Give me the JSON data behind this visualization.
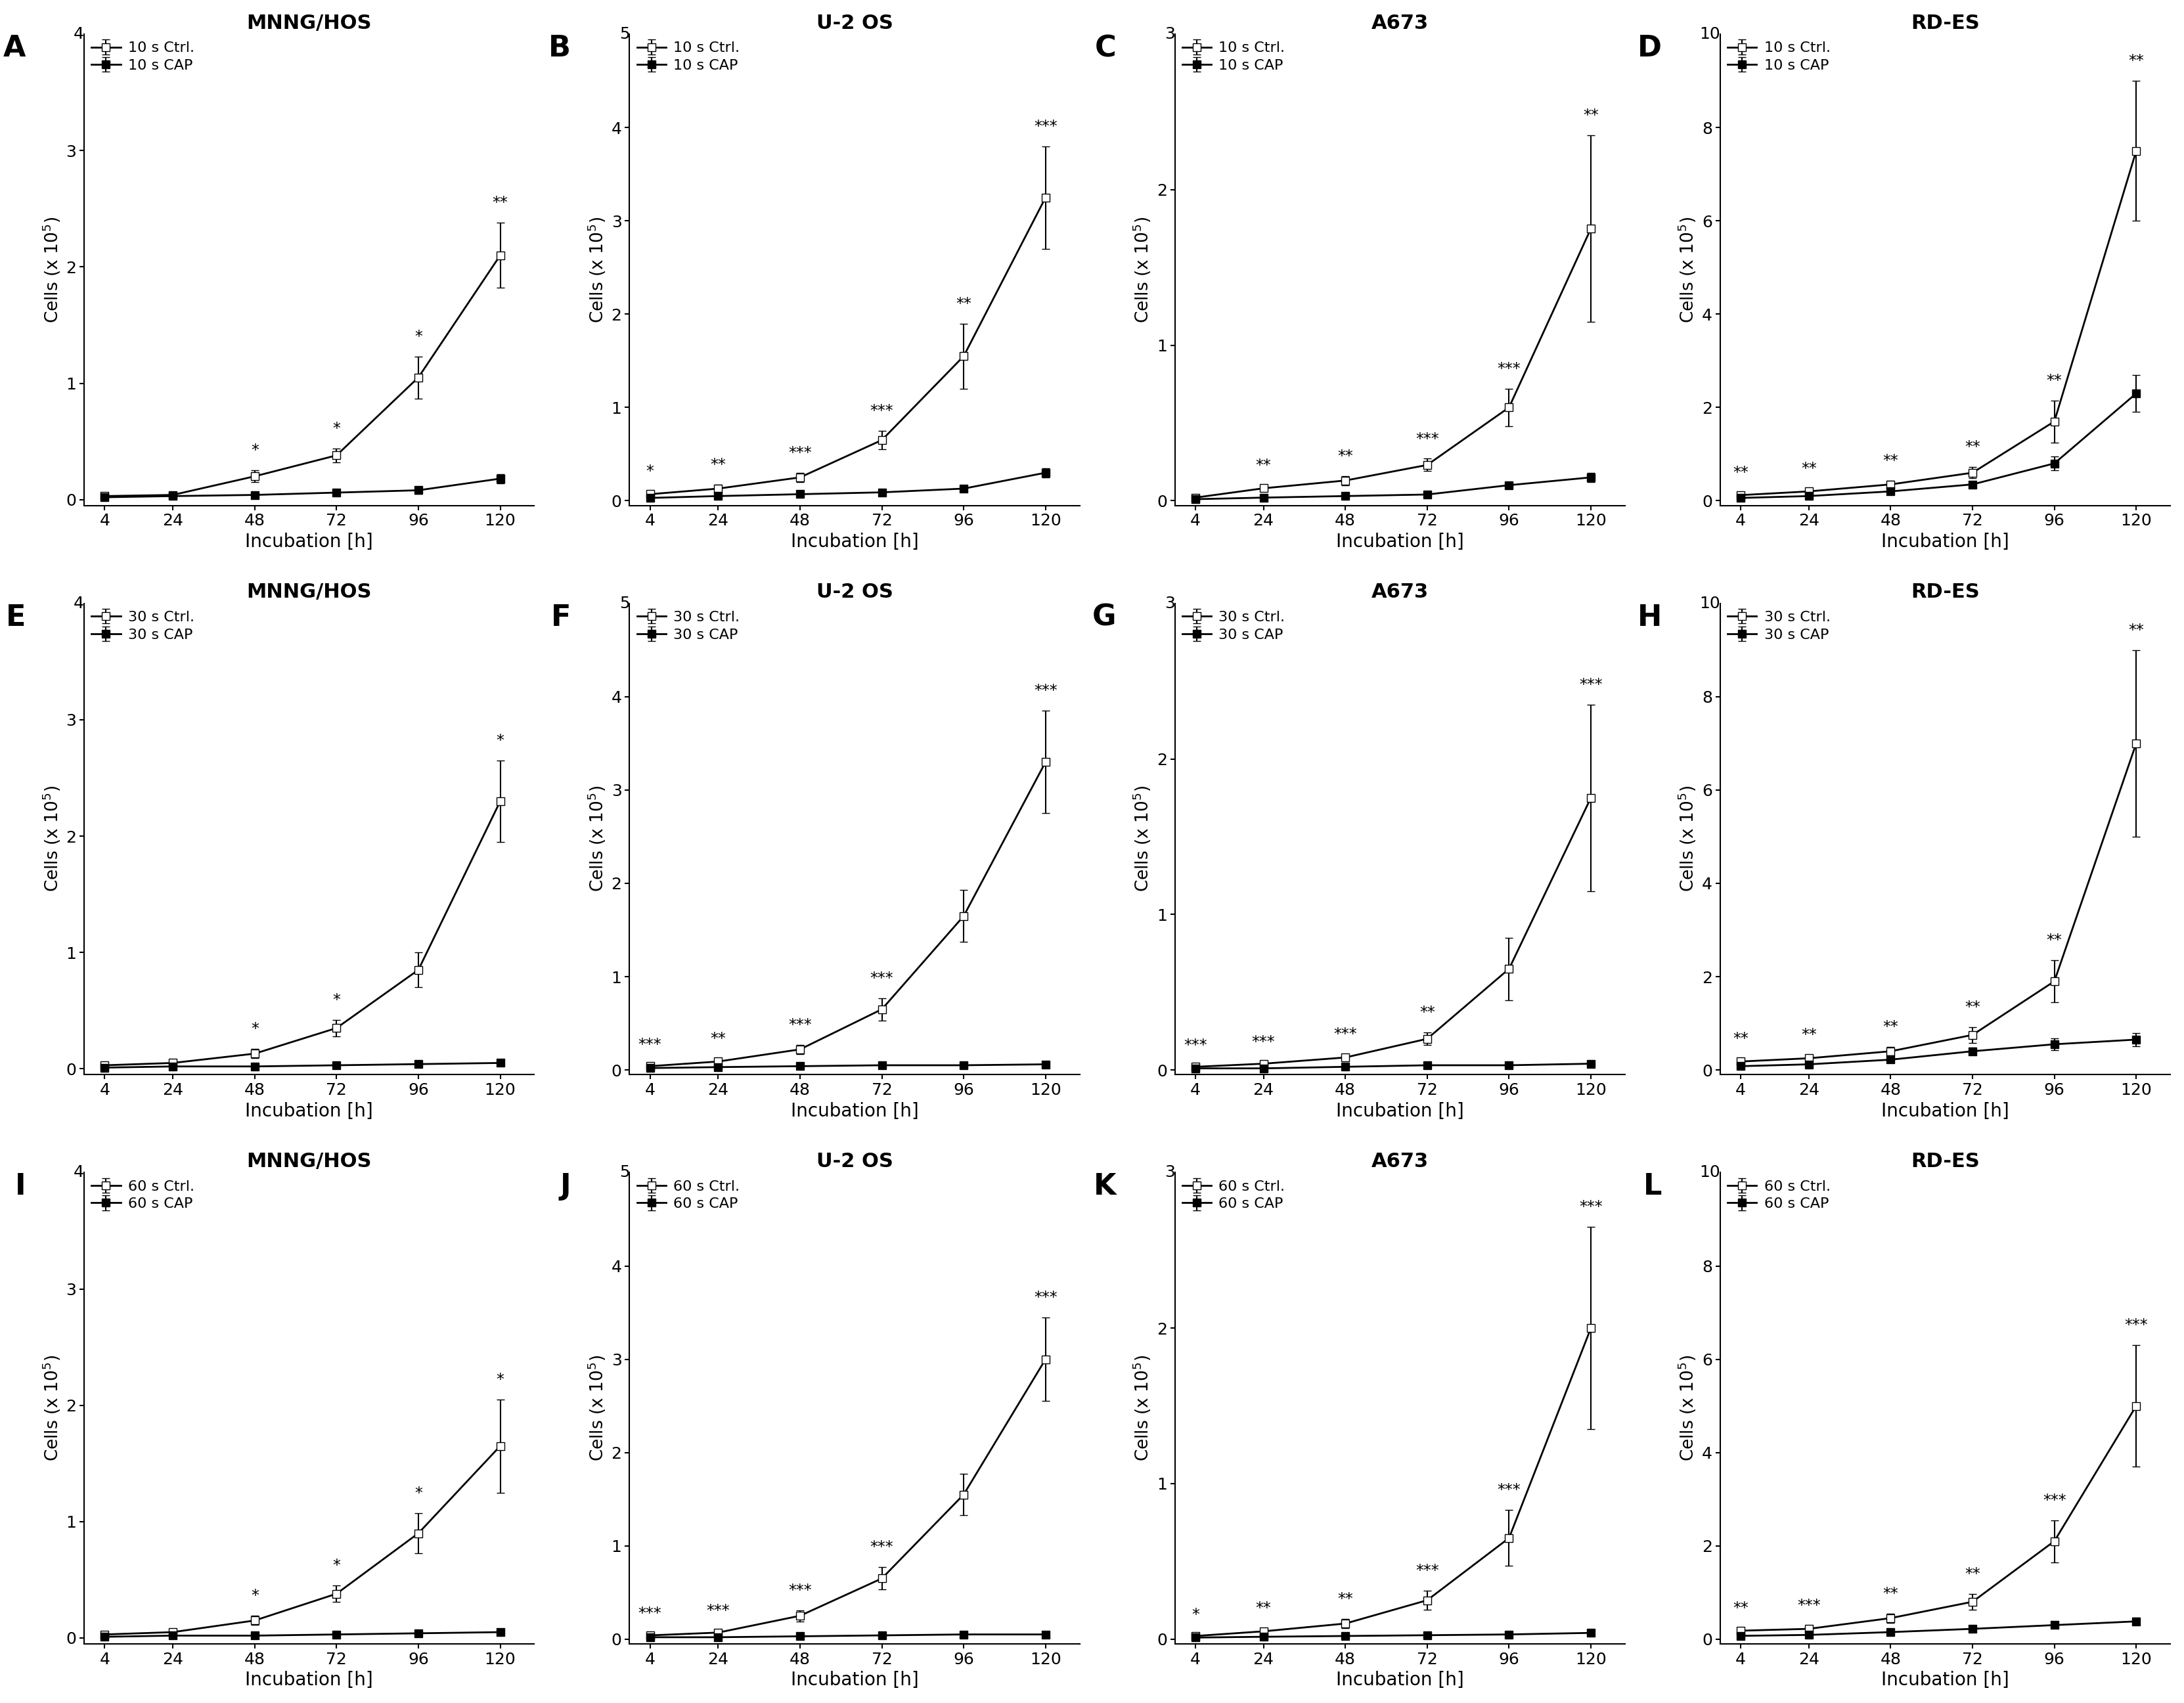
{
  "x": [
    4,
    24,
    48,
    72,
    96,
    120
  ],
  "panels": [
    {
      "label": "A",
      "title": "MNNG/HOS",
      "row": 0,
      "col": 0,
      "ctrl_label": "10 s Ctrl.",
      "cap_label": "10 s CAP",
      "ylim": [
        -0.05,
        4
      ],
      "yticks": [
        0,
        1,
        2,
        3
      ],
      "ymax_label": "4",
      "ctrl_y": [
        0.03,
        0.04,
        0.2,
        0.38,
        1.05,
        2.1
      ],
      "ctrl_err": [
        0.02,
        0.02,
        0.05,
        0.06,
        0.18,
        0.28
      ],
      "cap_y": [
        0.02,
        0.03,
        0.04,
        0.06,
        0.08,
        0.18
      ],
      "cap_err": [
        0.01,
        0.01,
        0.02,
        0.02,
        0.03,
        0.04
      ],
      "sig": [
        "",
        "",
        "*",
        "*",
        "*",
        "**"
      ]
    },
    {
      "label": "B",
      "title": "U-2 OS",
      "row": 0,
      "col": 1,
      "ctrl_label": "10 s Ctrl.",
      "cap_label": "10 s CAP",
      "ylim": [
        -0.05,
        5
      ],
      "yticks": [
        0,
        1,
        2,
        3,
        4
      ],
      "ymax_label": "5",
      "ctrl_y": [
        0.07,
        0.13,
        0.25,
        0.65,
        1.55,
        3.25
      ],
      "ctrl_err": [
        0.03,
        0.04,
        0.05,
        0.1,
        0.35,
        0.55
      ],
      "cap_y": [
        0.03,
        0.05,
        0.07,
        0.09,
        0.13,
        0.3
      ],
      "cap_err": [
        0.01,
        0.01,
        0.02,
        0.02,
        0.03,
        0.05
      ],
      "sig": [
        "*",
        "**",
        "***",
        "***",
        "**",
        "***"
      ]
    },
    {
      "label": "C",
      "title": "A673",
      "row": 0,
      "col": 2,
      "ctrl_label": "10 s Ctrl.",
      "cap_label": "10 s CAP",
      "ylim": [
        -0.03,
        3
      ],
      "yticks": [
        0,
        1,
        2
      ],
      "ymax_label": "3",
      "ctrl_y": [
        0.02,
        0.08,
        0.13,
        0.23,
        0.6,
        1.75
      ],
      "ctrl_err": [
        0.01,
        0.02,
        0.03,
        0.04,
        0.12,
        0.6
      ],
      "cap_y": [
        0.01,
        0.02,
        0.03,
        0.04,
        0.1,
        0.15
      ],
      "cap_err": [
        0.005,
        0.005,
        0.01,
        0.01,
        0.02,
        0.03
      ],
      "sig": [
        "",
        "**",
        "**",
        "***",
        "***",
        "**"
      ]
    },
    {
      "label": "D",
      "title": "RD-ES",
      "row": 0,
      "col": 3,
      "ctrl_label": "10 s Ctrl.",
      "cap_label": "10 s CAP",
      "ylim": [
        -0.1,
        10
      ],
      "yticks": [
        0,
        2,
        4,
        6,
        8
      ],
      "ymax_label": "10",
      "ctrl_y": [
        0.12,
        0.2,
        0.35,
        0.6,
        1.7,
        7.5
      ],
      "ctrl_err": [
        0.05,
        0.06,
        0.08,
        0.12,
        0.45,
        1.5
      ],
      "cap_y": [
        0.06,
        0.1,
        0.2,
        0.35,
        0.8,
        2.3
      ],
      "cap_err": [
        0.02,
        0.03,
        0.04,
        0.06,
        0.15,
        0.4
      ],
      "sig": [
        "**",
        "**",
        "**",
        "**",
        "**",
        "**"
      ]
    },
    {
      "label": "E",
      "title": "MNNG/HOS",
      "row": 1,
      "col": 0,
      "ctrl_label": "30 s Ctrl.",
      "cap_label": "30 s CAP",
      "ylim": [
        -0.05,
        4
      ],
      "yticks": [
        0,
        1,
        2,
        3
      ],
      "ymax_label": "4",
      "ctrl_y": [
        0.03,
        0.05,
        0.13,
        0.35,
        0.85,
        2.3
      ],
      "ctrl_err": [
        0.01,
        0.02,
        0.04,
        0.07,
        0.15,
        0.35
      ],
      "cap_y": [
        0.01,
        0.02,
        0.02,
        0.03,
        0.04,
        0.05
      ],
      "cap_err": [
        0.005,
        0.005,
        0.005,
        0.01,
        0.01,
        0.01
      ],
      "sig": [
        "",
        "",
        "*",
        "*",
        "",
        "*"
      ]
    },
    {
      "label": "F",
      "title": "U-2 OS",
      "row": 1,
      "col": 1,
      "ctrl_label": "30 s Ctrl.",
      "cap_label": "30 s CAP",
      "ylim": [
        -0.05,
        5
      ],
      "yticks": [
        0,
        1,
        2,
        3,
        4
      ],
      "ymax_label": "5",
      "ctrl_y": [
        0.04,
        0.09,
        0.22,
        0.65,
        1.65,
        3.3
      ],
      "ctrl_err": [
        0.02,
        0.03,
        0.05,
        0.12,
        0.28,
        0.55
      ],
      "cap_y": [
        0.02,
        0.03,
        0.04,
        0.05,
        0.05,
        0.06
      ],
      "cap_err": [
        0.005,
        0.01,
        0.01,
        0.01,
        0.01,
        0.01
      ],
      "sig": [
        "***",
        "**",
        "***",
        "***",
        "",
        "***"
      ]
    },
    {
      "label": "G",
      "title": "A673",
      "row": 1,
      "col": 2,
      "ctrl_label": "30 s Ctrl.",
      "cap_label": "30 s CAP",
      "ylim": [
        -0.03,
        3
      ],
      "yticks": [
        0,
        1,
        2
      ],
      "ymax_label": "3",
      "ctrl_y": [
        0.02,
        0.04,
        0.08,
        0.2,
        0.65,
        1.75
      ],
      "ctrl_err": [
        0.01,
        0.01,
        0.02,
        0.04,
        0.2,
        0.6
      ],
      "cap_y": [
        0.01,
        0.01,
        0.02,
        0.03,
        0.03,
        0.04
      ],
      "cap_err": [
        0.003,
        0.003,
        0.005,
        0.01,
        0.01,
        0.01
      ],
      "sig": [
        "***",
        "***",
        "***",
        "**",
        "",
        "***"
      ]
    },
    {
      "label": "H",
      "title": "RD-ES",
      "row": 1,
      "col": 3,
      "ctrl_label": "30 s Ctrl.",
      "cap_label": "30 s CAP",
      "ylim": [
        -0.1,
        10
      ],
      "yticks": [
        0,
        2,
        4,
        6,
        8
      ],
      "ymax_label": "10",
      "ctrl_y": [
        0.18,
        0.25,
        0.4,
        0.75,
        1.9,
        7.0
      ],
      "ctrl_err": [
        0.06,
        0.07,
        0.1,
        0.17,
        0.45,
        2.0
      ],
      "cap_y": [
        0.08,
        0.12,
        0.22,
        0.4,
        0.55,
        0.65
      ],
      "cap_err": [
        0.02,
        0.03,
        0.05,
        0.08,
        0.12,
        0.14
      ],
      "sig": [
        "**",
        "**",
        "**",
        "**",
        "**",
        "**"
      ]
    },
    {
      "label": "I",
      "title": "MNNG/HOS",
      "row": 2,
      "col": 0,
      "ctrl_label": "60 s Ctrl.",
      "cap_label": "60 s CAP",
      "ylim": [
        -0.05,
        4
      ],
      "yticks": [
        0,
        1,
        2,
        3
      ],
      "ymax_label": "4",
      "ctrl_y": [
        0.03,
        0.05,
        0.15,
        0.38,
        0.9,
        1.65
      ],
      "ctrl_err": [
        0.01,
        0.02,
        0.04,
        0.07,
        0.17,
        0.4
      ],
      "cap_y": [
        0.01,
        0.02,
        0.02,
        0.03,
        0.04,
        0.05
      ],
      "cap_err": [
        0.003,
        0.005,
        0.005,
        0.01,
        0.01,
        0.01
      ],
      "sig": [
        "",
        "",
        "*",
        "*",
        "*",
        "*"
      ]
    },
    {
      "label": "J",
      "title": "U-2 OS",
      "row": 2,
      "col": 1,
      "ctrl_label": "60 s Ctrl.",
      "cap_label": "60 s CAP",
      "ylim": [
        -0.05,
        5
      ],
      "yticks": [
        0,
        1,
        2,
        3,
        4
      ],
      "ymax_label": "5",
      "ctrl_y": [
        0.04,
        0.07,
        0.25,
        0.65,
        1.55,
        3.0
      ],
      "ctrl_err": [
        0.02,
        0.02,
        0.06,
        0.12,
        0.22,
        0.45
      ],
      "cap_y": [
        0.02,
        0.02,
        0.03,
        0.04,
        0.05,
        0.05
      ],
      "cap_err": [
        0.005,
        0.005,
        0.01,
        0.01,
        0.01,
        0.01
      ],
      "sig": [
        "***",
        "***",
        "***",
        "***",
        "",
        "***"
      ]
    },
    {
      "label": "K",
      "title": "A673",
      "row": 2,
      "col": 2,
      "ctrl_label": "60 s Ctrl.",
      "cap_label": "60 s CAP",
      "ylim": [
        -0.03,
        3
      ],
      "yticks": [
        0,
        1,
        2
      ],
      "ymax_label": "3",
      "ctrl_y": [
        0.02,
        0.05,
        0.1,
        0.25,
        0.65,
        2.0
      ],
      "ctrl_err": [
        0.01,
        0.02,
        0.03,
        0.06,
        0.18,
        0.65
      ],
      "cap_y": [
        0.01,
        0.015,
        0.02,
        0.025,
        0.03,
        0.04
      ],
      "cap_err": [
        0.003,
        0.005,
        0.005,
        0.007,
        0.01,
        0.01
      ],
      "sig": [
        "*",
        "**",
        "**",
        "***",
        "***",
        "***"
      ]
    },
    {
      "label": "L",
      "title": "RD-ES",
      "row": 2,
      "col": 3,
      "ctrl_label": "60 s Ctrl.",
      "cap_label": "60 s CAP",
      "ylim": [
        -0.1,
        10
      ],
      "yticks": [
        0,
        2,
        4,
        6,
        8
      ],
      "ymax_label": "10",
      "ctrl_y": [
        0.18,
        0.22,
        0.45,
        0.8,
        2.1,
        5.0
      ],
      "ctrl_err": [
        0.06,
        0.07,
        0.1,
        0.17,
        0.45,
        1.3
      ],
      "cap_y": [
        0.07,
        0.09,
        0.15,
        0.22,
        0.3,
        0.38
      ],
      "cap_err": [
        0.02,
        0.03,
        0.04,
        0.05,
        0.07,
        0.08
      ],
      "sig": [
        "**",
        "***",
        "**",
        "**",
        "***",
        "***"
      ]
    }
  ],
  "x_ticks": [
    4,
    24,
    48,
    72,
    96,
    120
  ],
  "xlabel": "Incubation [h]",
  "ylabel": "Cells (x 10",
  "bg_color": "#ffffff"
}
